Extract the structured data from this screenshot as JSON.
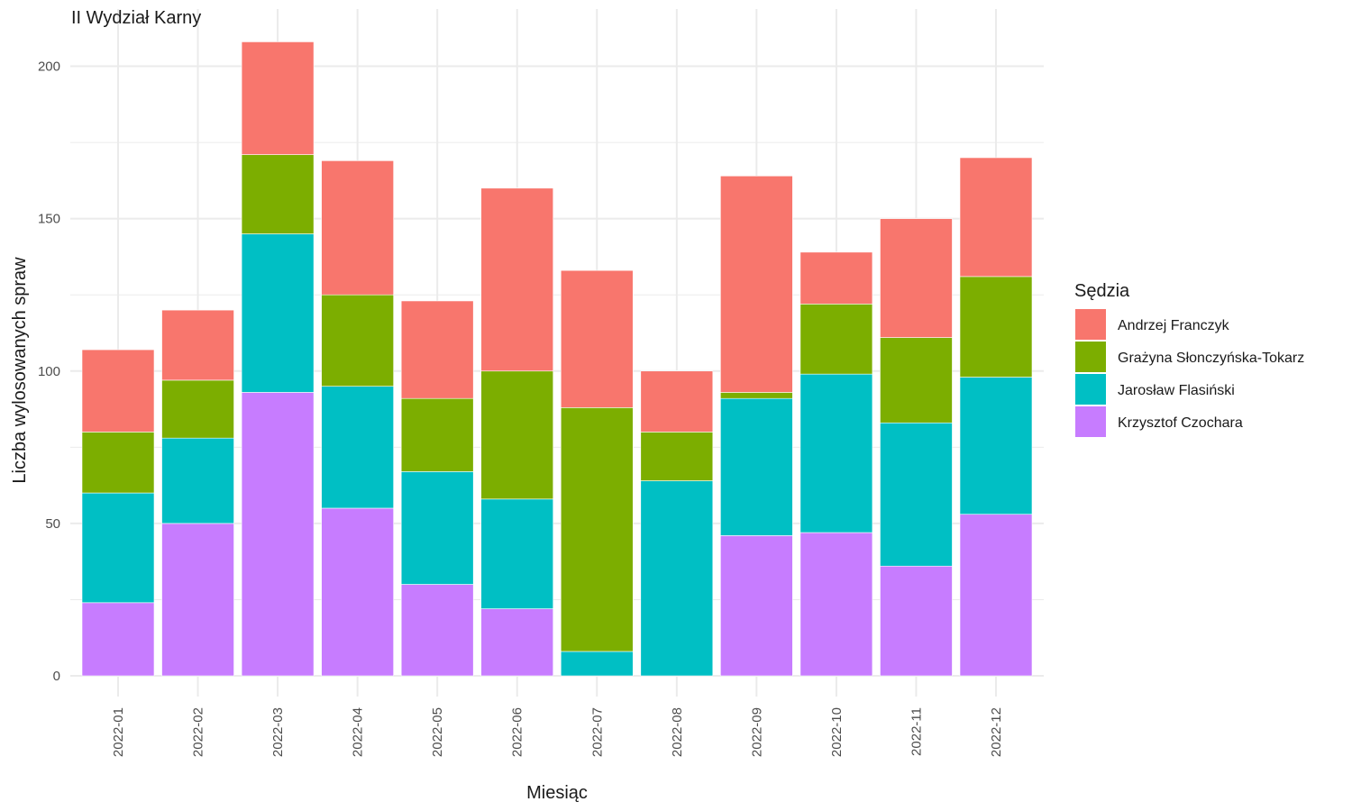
{
  "chart_data": {
    "type": "bar",
    "stacked": true,
    "title": "II Wydział Karny",
    "xlabel": "Miesiąc",
    "ylabel": "Liczba wylosowanych spraw",
    "ylim": [
      0,
      210
    ],
    "yticks": [
      0,
      50,
      100,
      150,
      200
    ],
    "grid": true,
    "legend_position": "right",
    "legend_title": "Sędzia",
    "categories": [
      "2022-01",
      "2022-02",
      "2022-03",
      "2022-04",
      "2022-05",
      "2022-06",
      "2022-07",
      "2022-08",
      "2022-09",
      "2022-10",
      "2022-11",
      "2022-12"
    ],
    "series": [
      {
        "name": "Krzysztof Czochara",
        "color": "#C77CFF",
        "values": [
          24,
          50,
          93,
          55,
          30,
          22,
          0,
          0,
          46,
          47,
          36,
          53
        ]
      },
      {
        "name": "Jarosław Flasiński",
        "color": "#00BFC4",
        "values": [
          36,
          28,
          52,
          40,
          37,
          36,
          8,
          64,
          45,
          52,
          47,
          45
        ]
      },
      {
        "name": "Grażyna Słonczyńska-Tokarz",
        "color": "#7CAE00",
        "values": [
          20,
          19,
          26,
          30,
          24,
          42,
          80,
          16,
          2,
          23,
          28,
          33
        ]
      },
      {
        "name": "Andrzej Franczyk",
        "color": "#F8766D",
        "values": [
          27,
          23,
          37,
          44,
          32,
          60,
          45,
          20,
          71,
          17,
          39,
          39
        ]
      }
    ],
    "legend_order": [
      "Andrzej Franczyk",
      "Grażyna Słonczyńska-Tokarz",
      "Jarosław Flasiński",
      "Krzysztof Czochara"
    ]
  }
}
